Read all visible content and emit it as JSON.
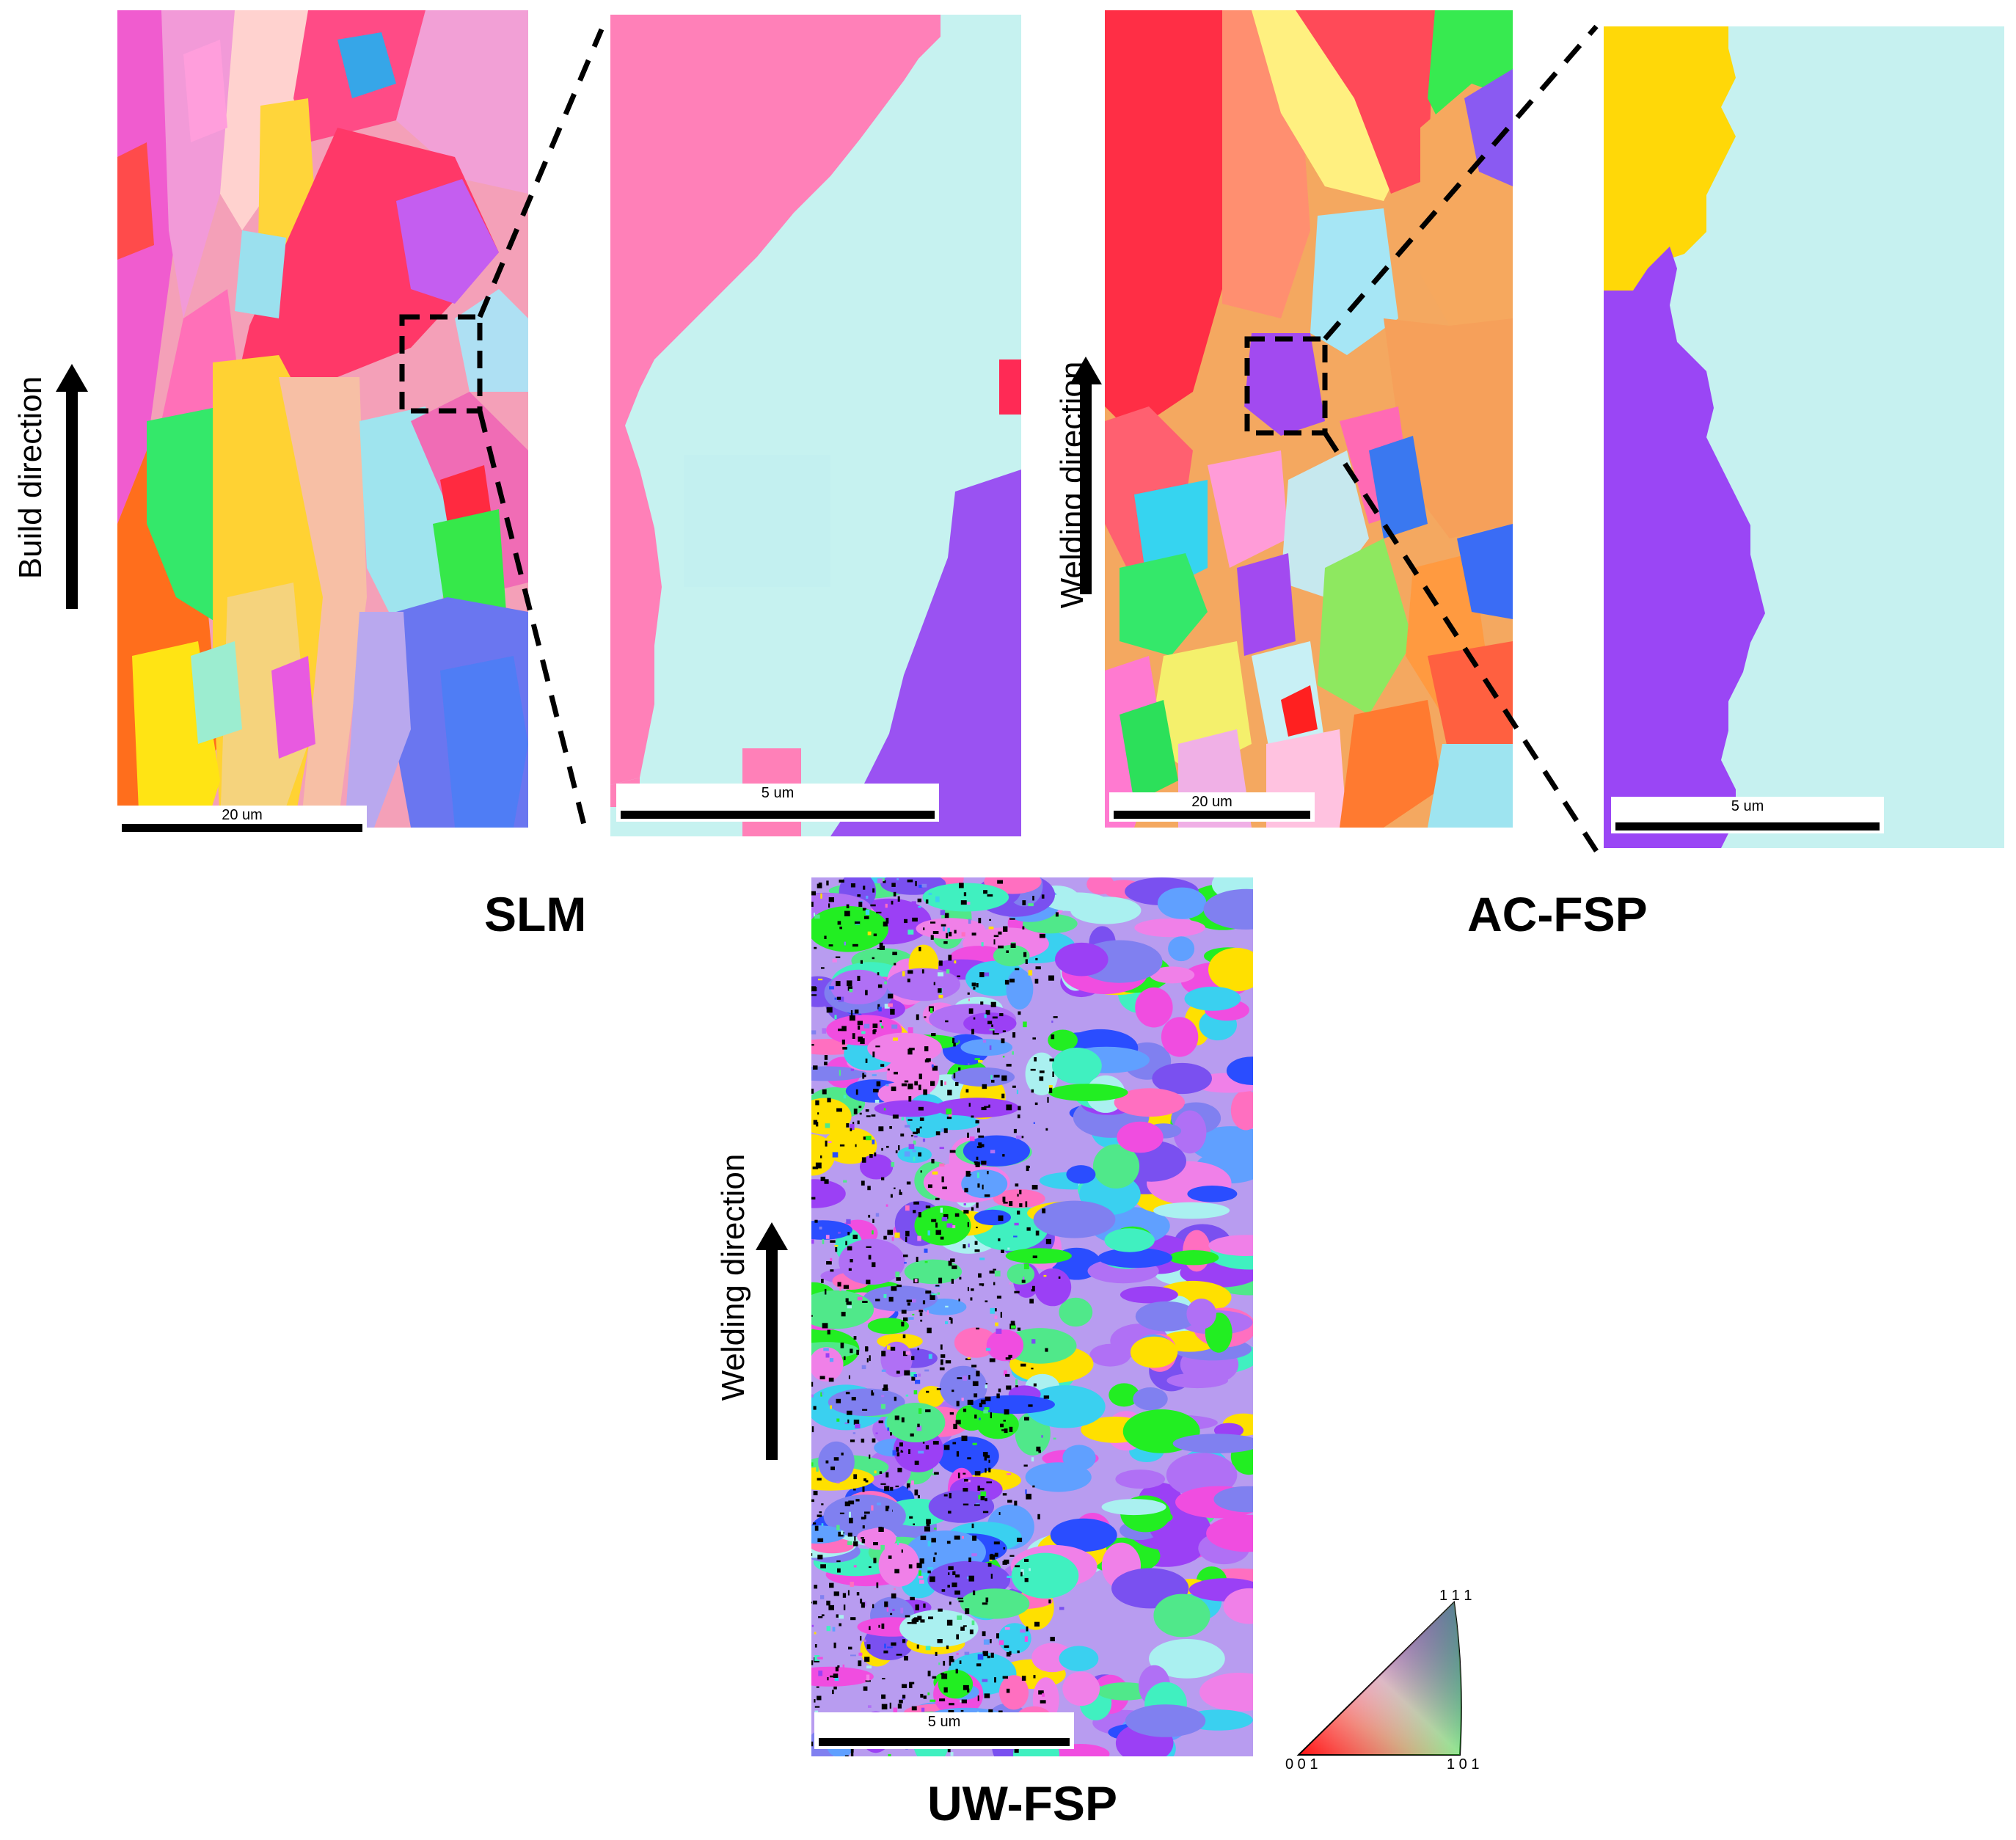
{
  "panels": {
    "slm": {
      "label": "SLM",
      "direction": "Build direction",
      "scale_overview": "20 um",
      "scale_zoom": "5 um"
    },
    "ac_fsp": {
      "label": "AC-FSP",
      "direction": "Welding direction",
      "scale_overview": "20 um",
      "scale_zoom": "5 um"
    },
    "uw_fsp": {
      "label": "UW-FSP",
      "direction": "Welding direction",
      "scale": "5 um"
    }
  },
  "ipf_key": {
    "corner_111": "1 1 1",
    "corner_001": "0 0 1",
    "corner_101": "1 0 1"
  },
  "colors": {
    "red_001": "#ff2a2a",
    "green_101": "#22ee22",
    "blue_111": "#2a4dff",
    "pink": "#ff6fc0",
    "light_cyan": "#aaf0f0",
    "purple": "#9b40f5",
    "yellow": "#ffe000",
    "orange": "#ff9a3a",
    "magenta": "#f04de0"
  }
}
